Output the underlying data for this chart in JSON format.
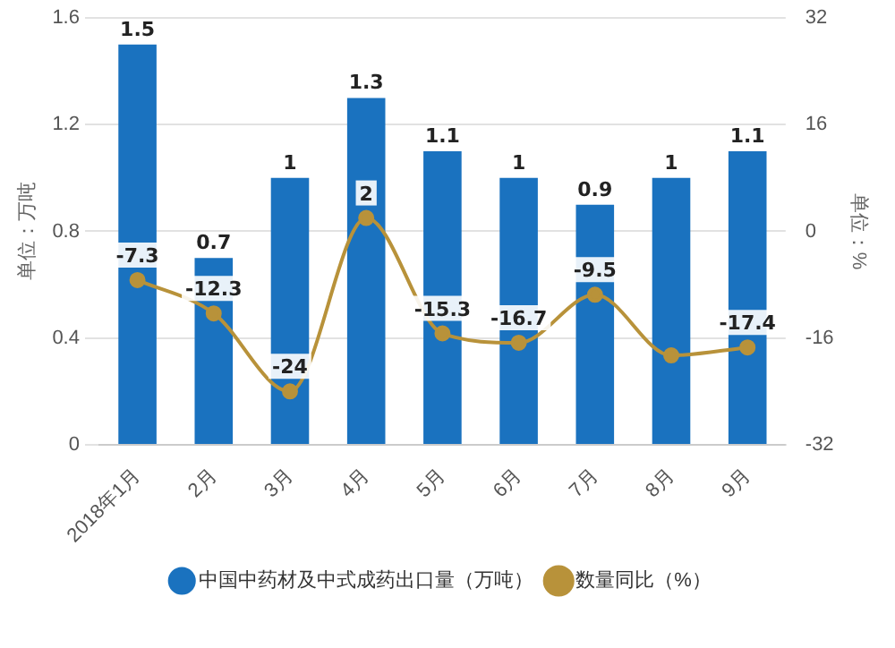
{
  "chart_data": {
    "type": "bar",
    "categories": [
      "2018年1月",
      "2月",
      "3月",
      "4月",
      "5月",
      "6月",
      "7月",
      "8月",
      "9月"
    ],
    "series": [
      {
        "name": "中国中药材及中式成药出口量（万吨）",
        "color": "#1a72bf",
        "values": [
          1.5,
          0.7,
          1,
          1.3,
          1.1,
          1,
          0.9,
          1,
          1.1
        ],
        "value_labels": [
          "1.5",
          "0.7",
          "1",
          "1.3",
          "1.1",
          "1",
          "0.9",
          "1",
          "1.1"
        ]
      },
      {
        "name": "数量同比（%）",
        "type": "line",
        "axis": "y2",
        "color": "#b8923a",
        "values": [
          -7.3,
          -12.3,
          -24,
          2,
          -15.3,
          -16.7,
          -9.5,
          -18.6,
          -17.4
        ],
        "value_labels": [
          "-7.3",
          "-12.3",
          "-24",
          "2",
          "-15.3",
          "-16.7",
          "-9.5",
          null,
          "-17.4"
        ]
      }
    ],
    "ylabel": "单位：万吨",
    "y2label": "单位：%",
    "ylim": [
      0,
      1.6
    ],
    "yticks": [
      0,
      0.4,
      0.8,
      1.2,
      1.6
    ],
    "y2lim": [
      -32,
      32
    ],
    "y2ticks": [
      -32,
      -16,
      0,
      16,
      32
    ],
    "grid": "y",
    "legend": "bottom",
    "marker": "circle",
    "line_style": "solid"
  }
}
